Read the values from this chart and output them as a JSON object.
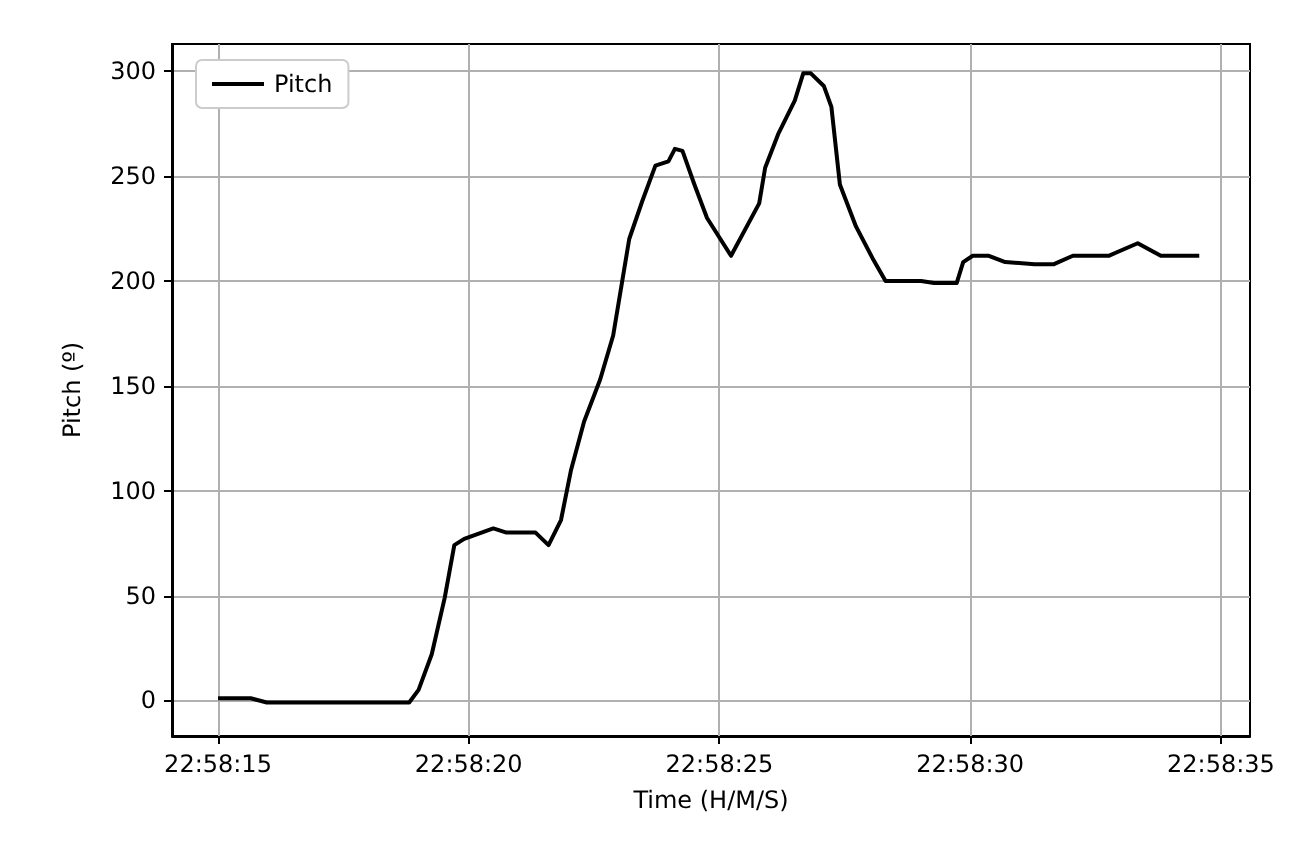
{
  "chart_data": {
    "type": "line",
    "xlabel": "Time (H/M/S)",
    "ylabel": "Pitch (º)",
    "legend": "top left",
    "grid": true,
    "line_style": "solid",
    "marker": "none",
    "xlim": [
      22.970578,
      22.97655
    ],
    "ylim": [
      -17,
      313
    ],
    "xticks": [
      {
        "value": 22.970833,
        "label": "22:58:15"
      },
      {
        "value": 22.972222,
        "label": "22:58:20"
      },
      {
        "value": 22.973611,
        "label": "22:58:25"
      },
      {
        "value": 22.975,
        "label": "22:58:30"
      },
      {
        "value": 22.976389,
        "label": "22:58:35"
      }
    ],
    "yticks": [
      0,
      50,
      100,
      150,
      200,
      250,
      300
    ],
    "x": [
      22.970833,
      22.971014,
      22.971103,
      22.971892,
      22.971944,
      22.972017,
      22.972089,
      22.972142,
      22.972197,
      22.972358,
      22.972431,
      22.972592,
      22.972664,
      22.972733,
      22.972789,
      22.972861,
      22.97295,
      22.973022,
      22.973111,
      22.973183,
      22.973256,
      22.973328,
      22.973364,
      22.973406,
      22.973472,
      22.973542,
      22.973675,
      22.973831,
      22.973864,
      22.973936,
      22.974028,
      22.974075,
      22.974117,
      22.974189,
      22.974231,
      22.974278,
      22.974367,
      22.974458,
      22.974531,
      22.974728,
      22.9748,
      22.974925,
      22.974961,
      22.975014,
      22.975103,
      22.975194,
      22.975356,
      22.975464,
      22.975569,
      22.975767,
      22.975928,
      22.976056,
      22.976269
    ],
    "series": [
      {
        "name": "Pitch",
        "color": "#000000",
        "values": [
          1,
          1,
          -1,
          -1,
          5,
          22,
          49,
          74,
          77,
          82,
          80,
          80,
          74,
          86,
          110,
          133,
          153,
          174,
          220,
          238,
          255,
          257,
          263,
          262,
          246,
          230,
          212,
          237,
          254,
          270,
          286,
          299,
          299,
          293,
          283,
          246,
          226,
          211,
          200,
          200,
          199,
          199,
          209,
          212,
          212,
          209,
          208,
          208,
          212,
          212,
          218,
          212,
          212
        ]
      }
    ]
  }
}
